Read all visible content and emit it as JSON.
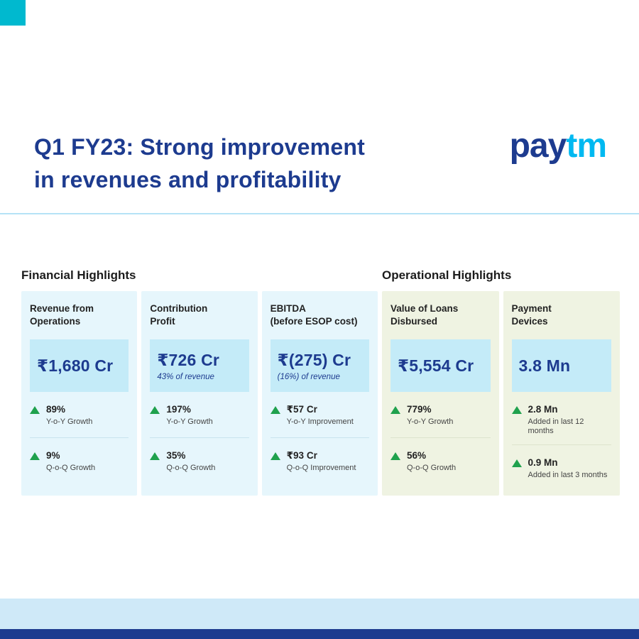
{
  "colors": {
    "navy": "#1d3b8f",
    "cyan": "#00b9f1",
    "teal_square": "#00b9cf",
    "green": "#1fa14d",
    "financial_card_bg": "#e6f6fc",
    "operational_card_bg": "#eff3e2",
    "value_box_bg": "#c4ebf8",
    "band_light": "#cfe9f8",
    "band_dark": "#1d3b8f"
  },
  "header": {
    "title_line1": "Q1 FY23: Strong improvement",
    "title_line2": "in revenues and profitability",
    "logo_part1": "pay",
    "logo_part2": "tm"
  },
  "sections": [
    {
      "id": "financial",
      "type": "financial",
      "heading": "Financial Highlights",
      "cards": [
        {
          "title": "Revenue from\nOperations",
          "value": "₹1,680 Cr",
          "subtext": "",
          "metrics": [
            {
              "value": "89%",
              "label": "Y-o-Y Growth"
            },
            {
              "value": "9%",
              "label": "Q-o-Q Growth"
            }
          ]
        },
        {
          "title": "Contribution\nProfit",
          "value": "₹726 Cr",
          "subtext": "43% of revenue",
          "metrics": [
            {
              "value": "197%",
              "label": "Y-o-Y Growth"
            },
            {
              "value": "35%",
              "label": "Q-o-Q Growth"
            }
          ]
        },
        {
          "title": "EBITDA\n(before ESOP cost)",
          "value": "₹(275) Cr",
          "subtext": "(16%) of revenue",
          "metrics": [
            {
              "value": "₹57 Cr",
              "label": "Y-o-Y Improvement"
            },
            {
              "value": "₹93 Cr",
              "label": "Q-o-Q Improvement"
            }
          ]
        }
      ]
    },
    {
      "id": "operational",
      "type": "operational",
      "heading": "Operational Highlights",
      "cards": [
        {
          "title": "Value of Loans\nDisbursed",
          "value": "₹5,554 Cr",
          "subtext": "",
          "metrics": [
            {
              "value": "779%",
              "label": "Y-o-Y Growth"
            },
            {
              "value": "56%",
              "label": "Q-o-Q Growth"
            }
          ]
        },
        {
          "title": "Payment\nDevices",
          "value": "3.8 Mn",
          "subtext": "",
          "metrics": [
            {
              "value": "2.8 Mn",
              "label": "Added in last 12 months"
            },
            {
              "value": "0.9 Mn",
              "label": "Added in last 3 months"
            }
          ]
        }
      ]
    }
  ]
}
